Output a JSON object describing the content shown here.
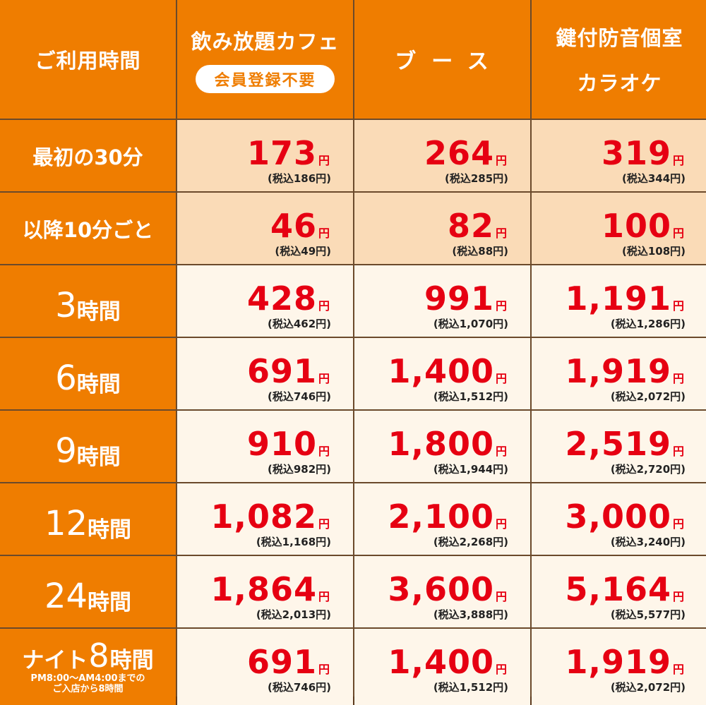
{
  "header": {
    "col0": "ご利用時間",
    "col1_title": "飲み放題カフェ",
    "col1_badge": "会員登録不要",
    "col2_title": "ブース",
    "col3_line1": "鍵付防音個室",
    "col3_line2": "カラオケ"
  },
  "currency": "円",
  "rows": [
    {
      "label": "最初の30分",
      "style": "peach",
      "prices": [
        {
          "amount": "173",
          "tax": "(税込186円)"
        },
        {
          "amount": "264",
          "tax": "(税込285円)"
        },
        {
          "amount": "319",
          "tax": "(税込344円)"
        }
      ]
    },
    {
      "label": "以降10分ごと",
      "style": "peach",
      "prices": [
        {
          "amount": "46",
          "tax": "(税込49円)"
        },
        {
          "amount": "82",
          "tax": "(税込88円)"
        },
        {
          "amount": "100",
          "tax": "(税込108円)"
        }
      ]
    },
    {
      "num": "3",
      "unit": "時間",
      "style": "cream",
      "prices": [
        {
          "amount": "428",
          "tax": "(税込462円)"
        },
        {
          "amount": "991",
          "tax": "(税込1,070円)"
        },
        {
          "amount": "1,191",
          "tax": "(税込1,286円)"
        }
      ]
    },
    {
      "num": "6",
      "unit": "時間",
      "style": "cream",
      "prices": [
        {
          "amount": "691",
          "tax": "(税込746円)"
        },
        {
          "amount": "1,400",
          "tax": "(税込1,512円)"
        },
        {
          "amount": "1,919",
          "tax": "(税込2,072円)"
        }
      ]
    },
    {
      "num": "9",
      "unit": "時間",
      "style": "cream",
      "prices": [
        {
          "amount": "910",
          "tax": "(税込982円)"
        },
        {
          "amount": "1,800",
          "tax": "(税込1,944円)"
        },
        {
          "amount": "2,519",
          "tax": "(税込2,720円)"
        }
      ]
    },
    {
      "num": "12",
      "unit": "時間",
      "style": "cream",
      "prices": [
        {
          "amount": "1,082",
          "tax": "(税込1,168円)"
        },
        {
          "amount": "2,100",
          "tax": "(税込2,268円)"
        },
        {
          "amount": "3,000",
          "tax": "(税込3,240円)"
        }
      ]
    },
    {
      "num": "24",
      "unit": "時間",
      "style": "cream",
      "prices": [
        {
          "amount": "1,864",
          "tax": "(税込2,013円)"
        },
        {
          "amount": "3,600",
          "tax": "(税込3,888円)"
        },
        {
          "amount": "5,164",
          "tax": "(税込5,577円)"
        }
      ]
    },
    {
      "night_prefix": "ナイト",
      "night_num": "8",
      "night_unit": "時間",
      "night_note_1": "PM8:00〜AM4:00までの",
      "night_note_2": "ご入店から8時間",
      "style": "cream",
      "prices": [
        {
          "amount": "691",
          "tax": "(税込746円)"
        },
        {
          "amount": "1,400",
          "tax": "(税込1,512円)"
        },
        {
          "amount": "1,919",
          "tax": "(税込2,072円)"
        }
      ]
    }
  ],
  "colors": {
    "header_bg": "#ef7d00",
    "price_red": "#e60012",
    "peach_bg": "#fadbb7",
    "cream_bg": "#fef6ea"
  }
}
